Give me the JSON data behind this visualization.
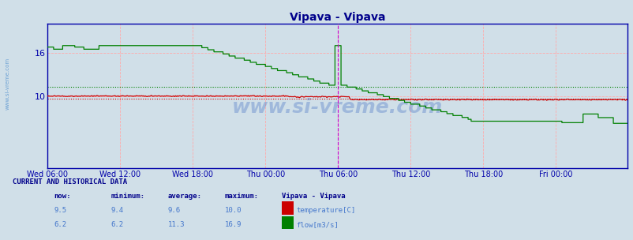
{
  "title": "Vipava - Vipava",
  "title_color": "#00008b",
  "fig_bg_color": "#d0dfe8",
  "plot_bg_color": "#d0dfe8",
  "x_tick_labels": [
    "Wed 06:00",
    "Wed 12:00",
    "Wed 18:00",
    "Thu 00:00",
    "Thu 06:00",
    "Thu 12:00",
    "Thu 18:00",
    "Fri 00:00"
  ],
  "y_ticks": [
    10,
    16
  ],
  "ylim": [
    0,
    20
  ],
  "temp_color": "#cc0000",
  "flow_color": "#008000",
  "grid_h_color": "#ffaaaa",
  "grid_v_color": "#ffaaaa",
  "border_color": "#0000aa",
  "current_marker_color": "#cc00cc",
  "watermark": "www.si-vreme.com",
  "watermark_color": "#3060c0",
  "watermark_alpha": 0.3,
  "side_label_color": "#4488cc",
  "temp_now": "9.5",
  "temp_min": "9.4",
  "temp_avg": "9.6",
  "temp_max": "10.0",
  "flow_now": "6.2",
  "flow_min": "6.2",
  "flow_avg": "11.3",
  "flow_max": "16.9",
  "table_header_color": "#00008b",
  "table_data_color": "#4477cc",
  "label_color": "#0000aa",
  "tick_label_color": "#0000aa"
}
